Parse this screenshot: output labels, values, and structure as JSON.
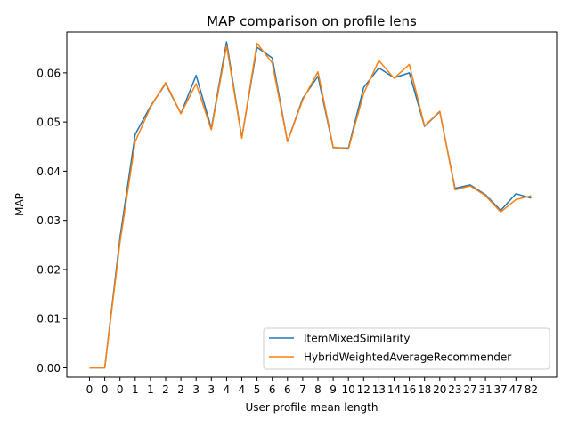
{
  "chart_data": {
    "type": "line",
    "title": "MAP comparison on profile lens",
    "xlabel": "User profile mean length",
    "ylabel": "MAP",
    "categories": [
      "0",
      "0",
      "0",
      "1",
      "1",
      "2",
      "2",
      "3",
      "3",
      "4",
      "4",
      "5",
      "6",
      "6",
      "7",
      "8",
      "9",
      "10",
      "12",
      "13",
      "14",
      "16",
      "18",
      "20",
      "23",
      "27",
      "31",
      "37",
      "47",
      "82"
    ],
    "ylim": [
      -0.0019,
      0.0683
    ],
    "yticks": [
      "0.00",
      "0.01",
      "0.02",
      "0.03",
      "0.04",
      "0.05",
      "0.06"
    ],
    "ytick_values": [
      0.0,
      0.01,
      0.02,
      0.03,
      0.04,
      0.05,
      0.06
    ],
    "grid": false,
    "legend_position": "lower right",
    "series": [
      {
        "name": "ItemMixedSimilarity",
        "color": "#1f77b4",
        "values": [
          0.0,
          0.0,
          0.0265,
          0.0475,
          0.0532,
          0.0578,
          0.0517,
          0.0595,
          0.0487,
          0.0663,
          0.0468,
          0.0652,
          0.063,
          0.046,
          0.0548,
          0.0593,
          0.0448,
          0.0447,
          0.057,
          0.061,
          0.059,
          0.06,
          0.0491,
          0.0521,
          0.0365,
          0.0372,
          0.0352,
          0.032,
          0.0354,
          0.0345
        ]
      },
      {
        "name": "HybridWeightedAverageRecommender",
        "color": "#ff7f0e",
        "values": [
          0.0,
          0.0,
          0.0255,
          0.046,
          0.053,
          0.058,
          0.0517,
          0.0578,
          0.0484,
          0.0655,
          0.0467,
          0.066,
          0.062,
          0.046,
          0.0545,
          0.0602,
          0.0449,
          0.0445,
          0.0558,
          0.0625,
          0.0589,
          0.0617,
          0.0492,
          0.0522,
          0.0362,
          0.037,
          0.035,
          0.0317,
          0.0342,
          0.035
        ]
      }
    ]
  }
}
